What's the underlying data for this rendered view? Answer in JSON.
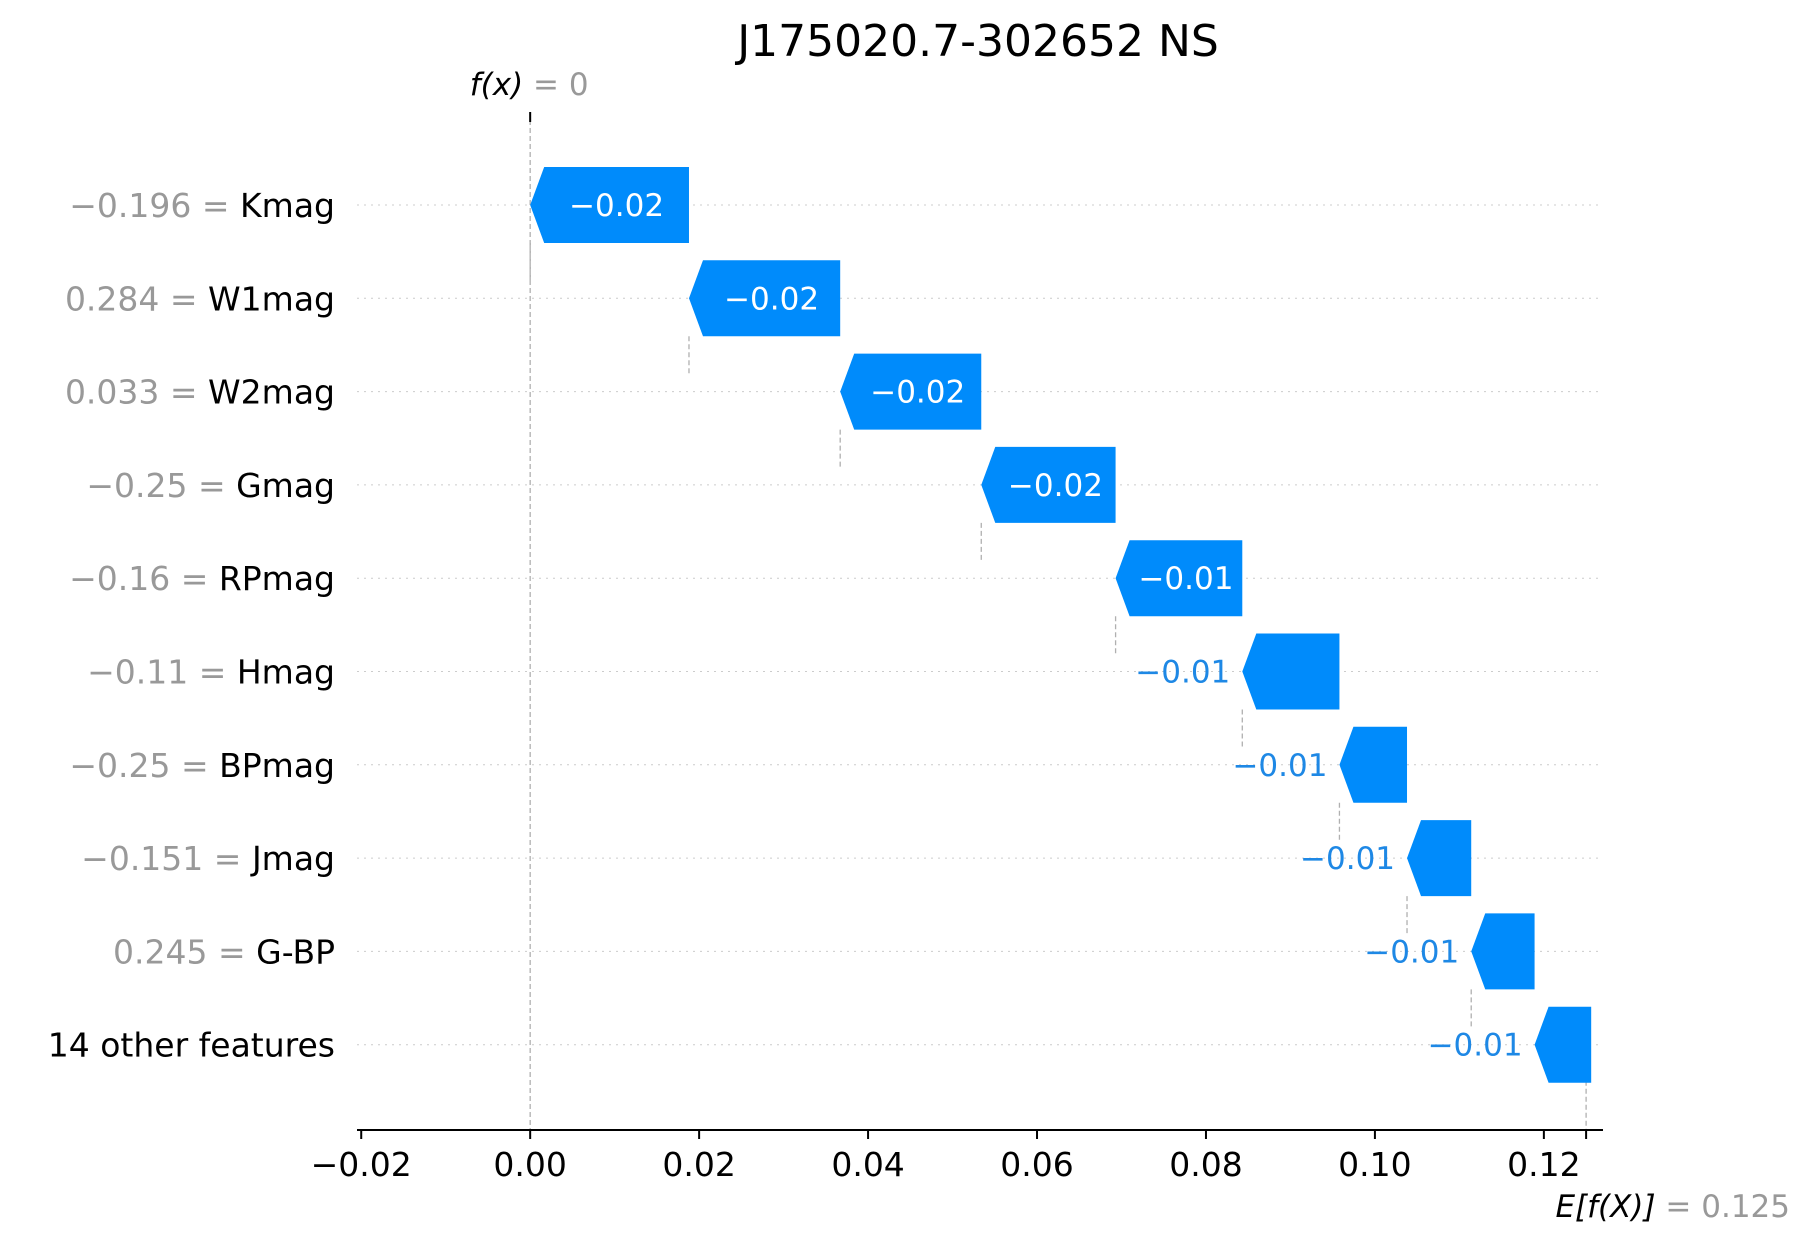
{
  "chart_data": {
    "type": "waterfall",
    "title": "J175020.7-302652 NS",
    "xlim": [
      -0.0205,
      0.127
    ],
    "x_ticks": [
      -0.02,
      0.0,
      0.02,
      0.04,
      0.06,
      0.08,
      0.1,
      0.12
    ],
    "x_tick_labels": [
      "−0.02",
      "0.00",
      "0.02",
      "0.04",
      "0.06",
      "0.08",
      "0.10",
      "0.12"
    ],
    "fx": {
      "label": "f(x)",
      "value_text": "= 0",
      "value": 0.0
    },
    "base": {
      "label": "E[f(X)]",
      "value_text": "= 0.125",
      "value": 0.125
    },
    "features": [
      {
        "value": "−0.196",
        "name": "Kmag",
        "start": 0.0188,
        "end": 0.0,
        "label": "−0.02"
      },
      {
        "value": "0.284",
        "name": "W1mag",
        "start": 0.0367,
        "end": 0.0188,
        "label": "−0.02"
      },
      {
        "value": "0.033",
        "name": "W2mag",
        "start": 0.0534,
        "end": 0.0367,
        "label": "−0.02"
      },
      {
        "value": "−0.25",
        "name": "Gmag",
        "start": 0.0693,
        "end": 0.0534,
        "label": "−0.02"
      },
      {
        "value": "−0.16",
        "name": "RPmag",
        "start": 0.0843,
        "end": 0.0693,
        "label": "−0.01"
      },
      {
        "value": "−0.11",
        "name": "Hmag",
        "start": 0.0958,
        "end": 0.0843,
        "label": "−0.01"
      },
      {
        "value": "−0.25",
        "name": "BPmag",
        "start": 0.1038,
        "end": 0.0958,
        "label": "−0.01"
      },
      {
        "value": "−0.151",
        "name": "Jmag",
        "start": 0.1114,
        "end": 0.1038,
        "label": "−0.01"
      },
      {
        "value": "0.245",
        "name": "G-BP",
        "start": 0.1189,
        "end": 0.1114,
        "label": "−0.01"
      },
      {
        "value": "",
        "name": "14 other features",
        "start": 0.1256,
        "end": 0.1189,
        "label": "−0.01"
      }
    ],
    "bar_color": "#008bfb",
    "inside_label_color": "#ffffff",
    "outside_label_color": "#1e88e5",
    "separator": "="
  }
}
